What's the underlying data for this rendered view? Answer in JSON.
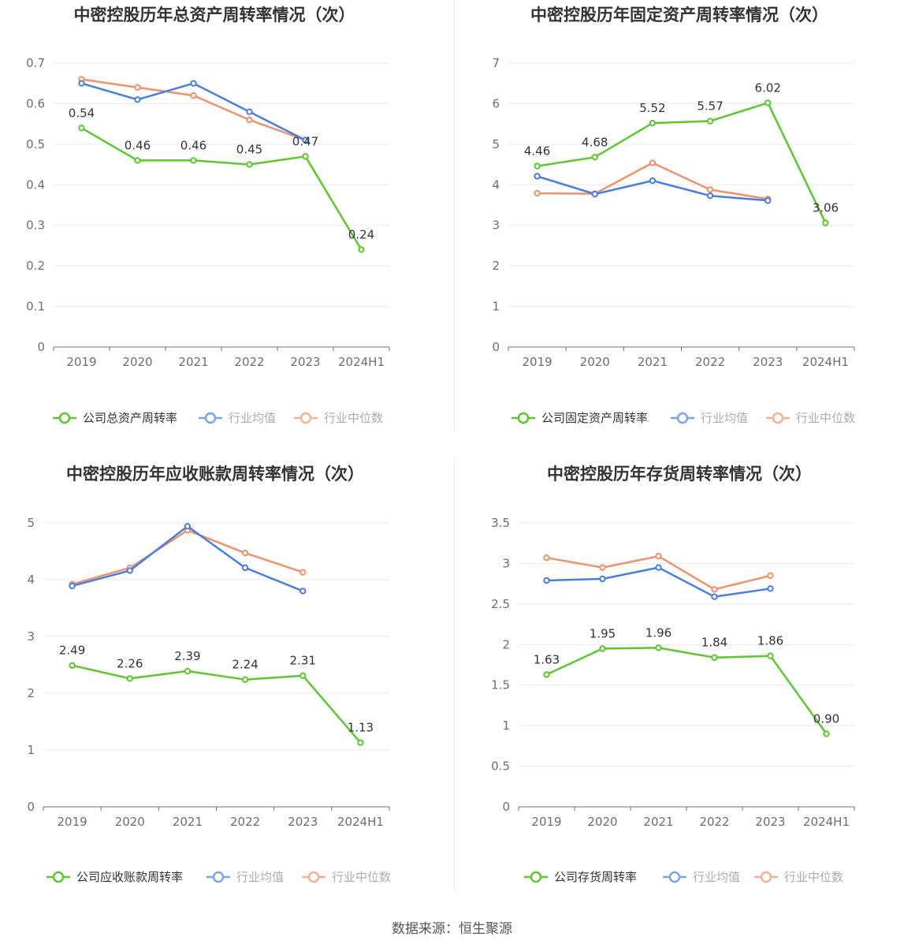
{
  "source": "数据来源：恒生聚源",
  "colors": {
    "company": "#5cc72e",
    "mean": "#4a7de0",
    "median": "#f0916a"
  },
  "legend": {
    "mean": "行业均值",
    "median": "行业中位数"
  },
  "chart_data": [
    {
      "type": "line",
      "title": "中密控股历年总资产周转率情况（次）",
      "x": [
        "2019",
        "2020",
        "2021",
        "2022",
        "2023",
        "2024H1"
      ],
      "ylim": [
        0,
        0.7
      ],
      "yticks": [
        "0",
        "0.1",
        "0.2",
        "0.3",
        "0.4",
        "0.5",
        "0.6",
        "0.7"
      ],
      "grid": true,
      "legend_position": "bottom",
      "series": [
        {
          "name": "公司总资产周转率",
          "key": "company",
          "values": [
            0.54,
            0.46,
            0.46,
            0.45,
            0.47,
            0.24
          ],
          "labels": [
            "0.54",
            "0.46",
            "0.46",
            "0.45",
            "0.47",
            "0.24"
          ]
        },
        {
          "name": "行业均值",
          "key": "mean",
          "values": [
            0.65,
            0.61,
            0.65,
            0.58,
            0.51,
            null
          ]
        },
        {
          "name": "行业中位数",
          "key": "median",
          "values": [
            0.66,
            0.64,
            0.62,
            0.56,
            0.51,
            null
          ]
        }
      ]
    },
    {
      "type": "line",
      "title": "中密控股历年固定资产周转率情况（次）",
      "x": [
        "2019",
        "2020",
        "2021",
        "2022",
        "2023",
        "2024H1"
      ],
      "ylim": [
        0,
        7
      ],
      "yticks": [
        "0",
        "1",
        "2",
        "3",
        "4",
        "5",
        "6",
        "7"
      ],
      "grid": true,
      "legend_position": "bottom",
      "series": [
        {
          "name": "公司固定资产周转率",
          "key": "company",
          "values": [
            4.46,
            4.68,
            5.52,
            5.57,
            6.02,
            3.06
          ],
          "labels": [
            "4.46",
            "4.68",
            "5.52",
            "5.57",
            "6.02",
            "3.06"
          ]
        },
        {
          "name": "行业均值",
          "key": "mean",
          "values": [
            4.21,
            3.77,
            4.1,
            3.73,
            3.61,
            null
          ]
        },
        {
          "name": "行业中位数",
          "key": "median",
          "values": [
            3.79,
            3.78,
            4.54,
            3.88,
            3.65,
            null
          ]
        }
      ]
    },
    {
      "type": "line",
      "title": "中密控股历年应收账款周转率情况（次）",
      "x": [
        "2019",
        "2020",
        "2021",
        "2022",
        "2023",
        "2024H1"
      ],
      "ylim": [
        0,
        5
      ],
      "yticks": [
        "0",
        "1",
        "2",
        "3",
        "4",
        "5"
      ],
      "grid": true,
      "legend_position": "bottom",
      "series": [
        {
          "name": "公司应收账款周转率",
          "key": "company",
          "values": [
            2.49,
            2.26,
            2.39,
            2.24,
            2.31,
            1.13
          ],
          "labels": [
            "2.49",
            "2.26",
            "2.39",
            "2.24",
            "2.31",
            "1.13"
          ]
        },
        {
          "name": "行业均值",
          "key": "mean",
          "values": [
            3.89,
            4.16,
            4.94,
            4.21,
            3.8,
            null
          ]
        },
        {
          "name": "行业中位数",
          "key": "median",
          "values": [
            3.92,
            4.21,
            4.87,
            4.47,
            4.13,
            null
          ]
        }
      ]
    },
    {
      "type": "line",
      "title": "中密控股历年存货周转率情况（次）",
      "x": [
        "2019",
        "2020",
        "2021",
        "2022",
        "2023",
        "2024H1"
      ],
      "ylim": [
        0,
        3.5
      ],
      "yticks": [
        "0",
        "0.5",
        "1",
        "1.5",
        "2",
        "2.5",
        "3",
        "3.5"
      ],
      "grid": true,
      "legend_position": "bottom",
      "series": [
        {
          "name": "公司存货周转率",
          "key": "company",
          "values": [
            1.63,
            1.95,
            1.96,
            1.84,
            1.86,
            0.9
          ],
          "labels": [
            "1.63",
            "1.95",
            "1.96",
            "1.84",
            "1.86",
            "0.90"
          ]
        },
        {
          "name": "行业均值",
          "key": "mean",
          "values": [
            2.79,
            2.81,
            2.95,
            2.59,
            2.69,
            null
          ]
        },
        {
          "name": "行业中位数",
          "key": "median",
          "values": [
            3.07,
            2.95,
            3.09,
            2.68,
            2.85,
            null
          ]
        }
      ]
    }
  ]
}
